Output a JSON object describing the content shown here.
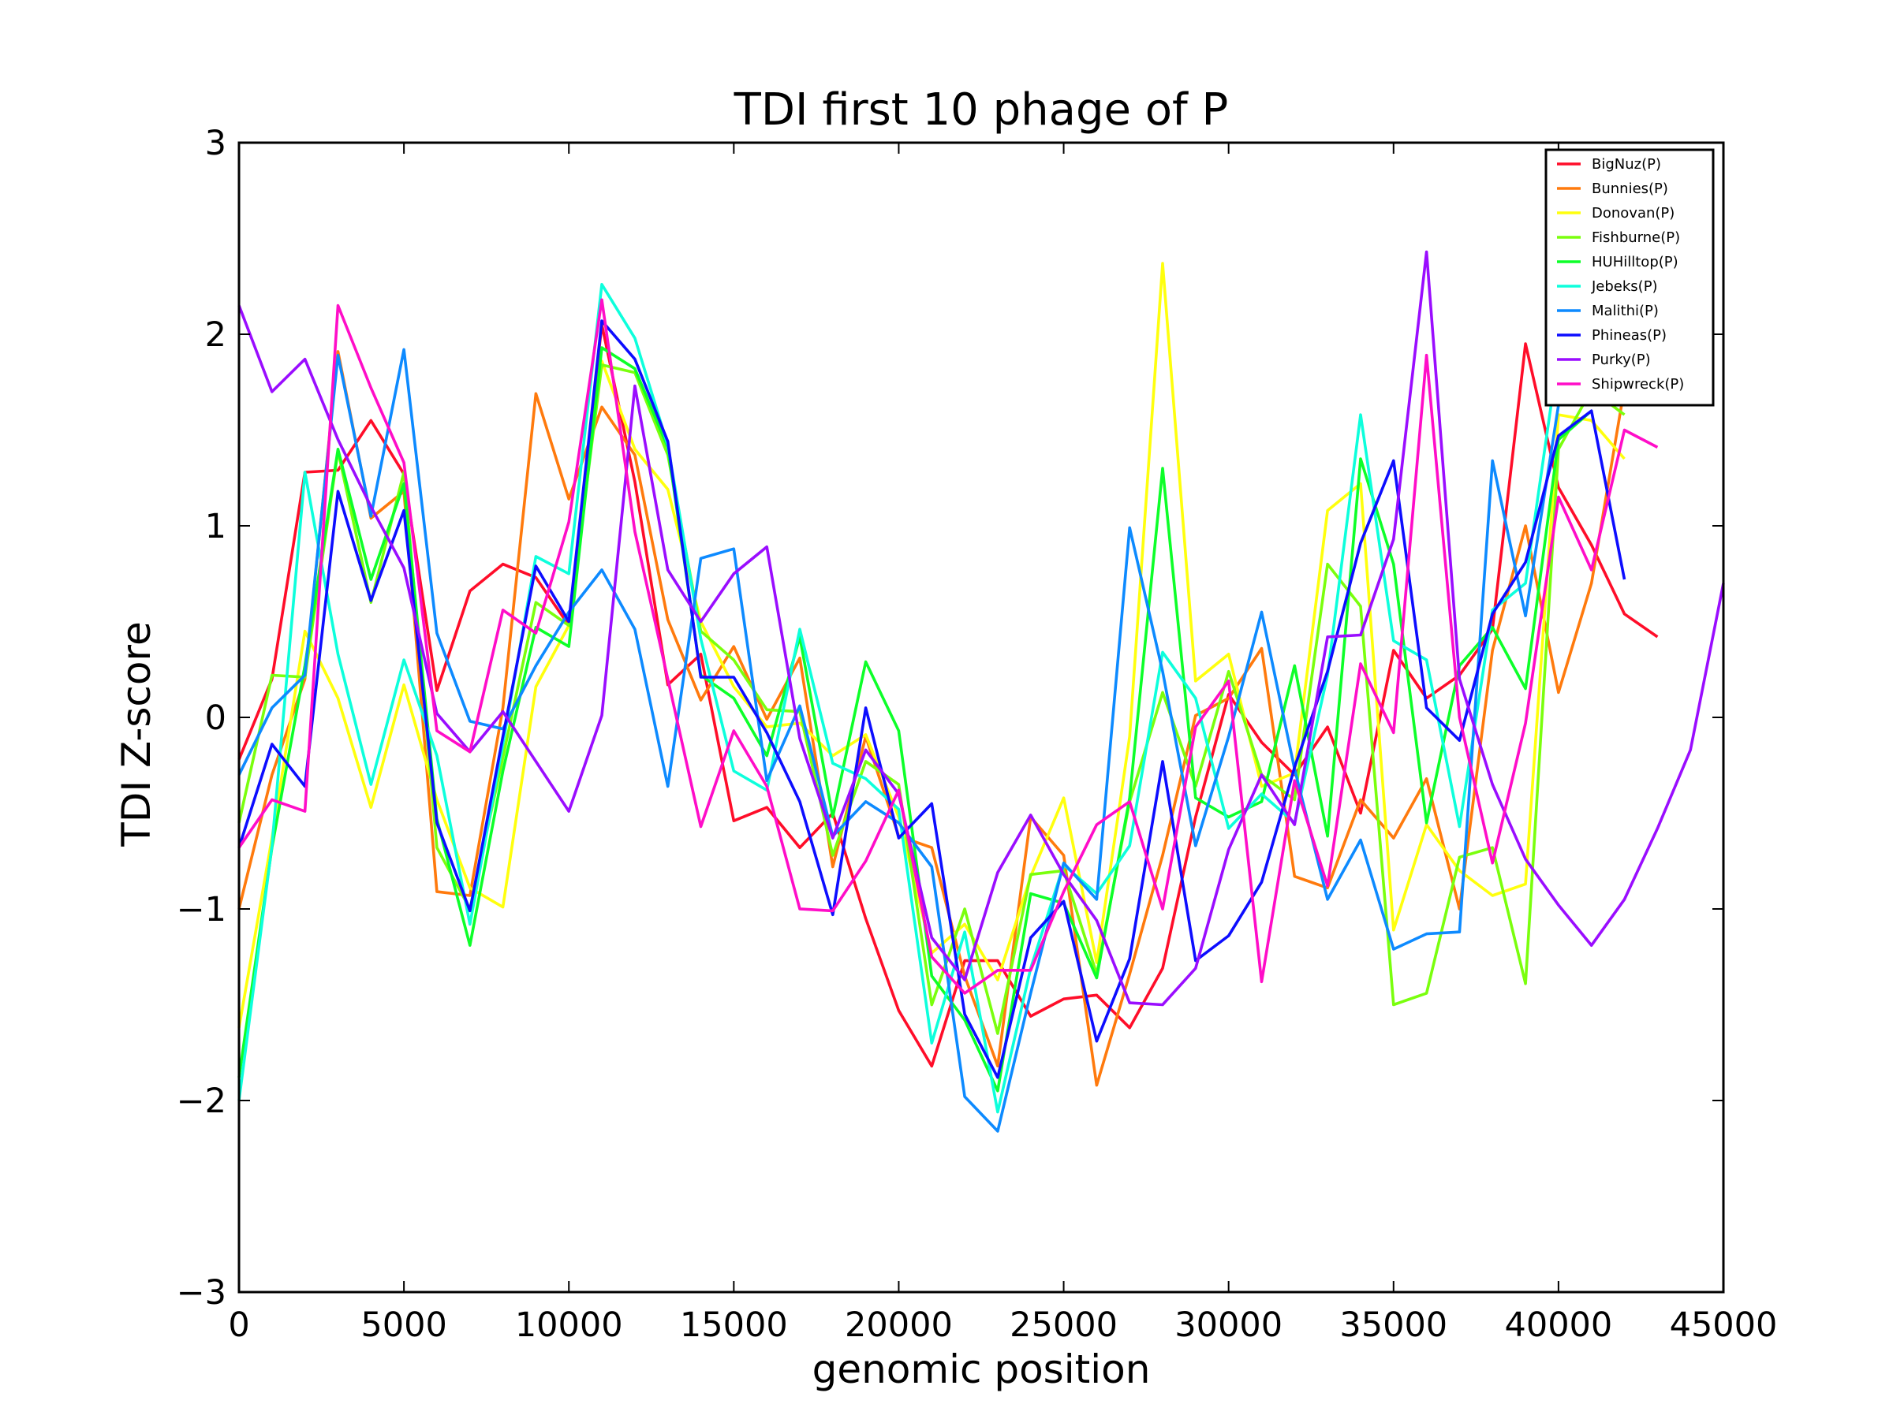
{
  "chart_data": {
    "type": "line",
    "title": "TDI first 10 phage of P",
    "xlabel": "genomic position",
    "ylabel": "TDI Z-score",
    "xlim": [
      0,
      45000
    ],
    "ylim": [
      -3,
      3
    ],
    "xticks": [
      0,
      5000,
      10000,
      15000,
      20000,
      25000,
      30000,
      35000,
      40000,
      45000
    ],
    "xtick_labels": [
      "0",
      "5000",
      "10000",
      "15000",
      "20000",
      "25000",
      "30000",
      "35000",
      "40000",
      "45000"
    ],
    "yticks": [
      -3,
      -2,
      -1,
      0,
      1,
      2,
      3
    ],
    "ytick_labels": [
      "−3",
      "−2",
      "−1",
      "0",
      "1",
      "2",
      "3"
    ],
    "grid": false,
    "legend_position": "top-right",
    "x": [
      0,
      1000,
      2000,
      3000,
      4000,
      5000,
      6000,
      7000,
      8000,
      9000,
      10000,
      11000,
      12000,
      13000,
      14000,
      15000,
      16000,
      17000,
      18000,
      19000,
      20000,
      21000,
      22000,
      23000,
      24000,
      25000,
      26000,
      27000,
      28000,
      29000,
      30000,
      31000,
      32000,
      33000,
      34000,
      35000,
      36000,
      37000,
      38000,
      39000,
      40000,
      41000,
      42000,
      43000,
      44000,
      45000
    ],
    "series": [
      {
        "name": "BigNuz(P)",
        "color": "#ff0d29",
        "values": [
          -0.22,
          0.2,
          1.28,
          1.29,
          1.55,
          1.27,
          0.14,
          0.66,
          0.8,
          0.73,
          0.48,
          2.05,
          1.23,
          0.17,
          0.33,
          -0.54,
          -0.47,
          -0.68,
          -0.5,
          -1.05,
          -1.53,
          -1.82,
          -1.27,
          -1.27,
          -1.56,
          -1.47,
          -1.45,
          -1.62,
          -1.31,
          -0.52,
          0.12,
          -0.13,
          -0.3,
          -0.05,
          -0.5,
          0.35,
          0.1,
          0.22,
          0.46,
          1.95,
          1.2,
          0.9,
          0.54,
          0.42,
          null,
          null
        ]
      },
      {
        "name": "Bunnies(P)",
        "color": "#ff7a0d",
        "values": [
          -1.0,
          -0.3,
          0.2,
          1.91,
          1.04,
          1.18,
          -0.91,
          -0.93,
          0.05,
          1.69,
          1.14,
          1.62,
          1.37,
          0.51,
          0.09,
          0.37,
          -0.01,
          0.31,
          -0.78,
          -0.1,
          -0.62,
          -0.68,
          -1.35,
          -1.82,
          -0.52,
          -0.72,
          -1.92,
          -1.34,
          -0.72,
          0.01,
          0.1,
          0.36,
          -0.83,
          -0.89,
          -0.43,
          -0.63,
          -0.32,
          -1.0,
          0.35,
          1.0,
          0.13,
          0.7,
          1.72,
          null,
          null,
          null
        ]
      },
      {
        "name": "Donovan(P)",
        "color": "#ffff0d",
        "values": [
          -1.62,
          -0.63,
          0.45,
          0.1,
          -0.47,
          0.17,
          -0.43,
          -0.89,
          -0.99,
          0.16,
          0.48,
          1.86,
          1.4,
          1.19,
          0.5,
          0.16,
          -0.05,
          -0.03,
          -0.2,
          -0.09,
          -0.52,
          -1.23,
          -1.08,
          -1.37,
          -0.83,
          -0.42,
          -1.28,
          -0.1,
          2.37,
          0.19,
          0.33,
          -0.36,
          -0.29,
          1.08,
          1.22,
          -1.11,
          -0.56,
          -0.8,
          -0.93,
          -0.87,
          1.58,
          1.55,
          1.35,
          null,
          null,
          null
        ]
      },
      {
        "name": "Fishburne(P)",
        "color": "#7aff0d",
        "values": [
          -0.55,
          0.22,
          0.21,
          1.39,
          0.6,
          1.28,
          -0.68,
          -1.0,
          -0.21,
          0.6,
          0.48,
          1.84,
          1.8,
          1.37,
          0.45,
          0.3,
          0.04,
          0.03,
          -0.72,
          -0.23,
          -0.35,
          -1.5,
          -1.0,
          -1.65,
          -0.82,
          -0.8,
          -1.34,
          -0.44,
          0.13,
          -0.36,
          0.24,
          -0.3,
          -0.43,
          0.8,
          0.58,
          -1.5,
          -1.44,
          -0.73,
          -0.68,
          -1.39,
          1.4,
          1.71,
          1.58,
          null,
          null,
          null
        ]
      },
      {
        "name": "HUHilltop(P)",
        "color": "#0dff29",
        "values": [
          -1.88,
          -0.68,
          0.27,
          1.4,
          0.72,
          1.22,
          -0.53,
          -1.19,
          -0.28,
          0.47,
          0.37,
          1.93,
          1.82,
          1.41,
          0.22,
          0.1,
          -0.2,
          0.42,
          -0.52,
          0.29,
          -0.07,
          -1.35,
          -1.58,
          -1.95,
          -0.92,
          -0.97,
          -1.36,
          -0.42,
          1.3,
          -0.42,
          -0.52,
          -0.44,
          0.27,
          -0.62,
          1.35,
          0.8,
          -0.55,
          0.27,
          0.47,
          0.15,
          1.45,
          1.6,
          null,
          null,
          null,
          null
        ]
      },
      {
        "name": "Jebeks(P)",
        "color": "#0dffdc",
        "values": [
          -2.0,
          -0.67,
          1.28,
          0.33,
          -0.35,
          0.3,
          -0.2,
          -1.08,
          -0.14,
          0.84,
          0.75,
          2.26,
          1.98,
          1.42,
          0.41,
          -0.28,
          -0.38,
          0.46,
          -0.24,
          -0.32,
          -0.48,
          -1.7,
          -1.12,
          -2.06,
          -1.31,
          -0.77,
          -0.92,
          -0.67,
          0.34,
          0.1,
          -0.58,
          -0.4,
          -0.55,
          0.22,
          1.58,
          0.4,
          0.3,
          -0.57,
          0.56,
          0.7,
          1.9,
          1.7,
          null,
          null,
          null,
          null
        ]
      },
      {
        "name": "Malithi(P)",
        "color": "#0d8aff",
        "values": [
          -0.3,
          0.05,
          0.22,
          1.89,
          1.05,
          1.92,
          0.44,
          -0.02,
          -0.06,
          0.27,
          0.55,
          0.77,
          0.46,
          -0.36,
          0.83,
          0.88,
          -0.33,
          0.06,
          -0.62,
          -0.44,
          -0.55,
          -0.78,
          -1.98,
          -2.16,
          -1.44,
          -0.76,
          -0.95,
          0.99,
          0.24,
          -0.67,
          -0.1,
          0.55,
          -0.27,
          -0.95,
          -0.64,
          -1.21,
          -1.13,
          -1.12,
          1.34,
          0.53,
          1.63,
          1.7,
          null,
          null,
          null,
          null
        ]
      },
      {
        "name": "Phineas(P)",
        "color": "#0d0dff",
        "values": [
          -0.68,
          -0.14,
          -0.36,
          1.18,
          0.61,
          1.08,
          -0.55,
          -1.01,
          -0.1,
          0.79,
          0.5,
          2.07,
          1.87,
          1.44,
          0.21,
          0.21,
          -0.08,
          -0.44,
          -1.03,
          0.05,
          -0.63,
          -0.45,
          -1.55,
          -1.88,
          -1.15,
          -0.96,
          -1.69,
          -1.26,
          -0.23,
          -1.27,
          -1.14,
          -0.86,
          -0.26,
          0.24,
          0.91,
          1.34,
          0.05,
          -0.12,
          0.54,
          0.81,
          1.47,
          1.6,
          0.72,
          null,
          null,
          null
        ]
      },
      {
        "name": "Purky(P)",
        "color": "#9a0dff",
        "values": [
          2.15,
          1.7,
          1.87,
          1.45,
          1.1,
          0.78,
          0.02,
          -0.18,
          0.03,
          -0.23,
          -0.49,
          0.01,
          1.73,
          0.77,
          0.5,
          0.75,
          0.89,
          -0.11,
          -0.63,
          -0.17,
          -0.4,
          -1.15,
          -1.37,
          -0.81,
          -0.51,
          -0.82,
          -1.06,
          -1.49,
          -1.5,
          -1.31,
          -0.69,
          -0.3,
          -0.56,
          0.42,
          0.43,
          0.93,
          2.43,
          0.2,
          -0.35,
          -0.74,
          -0.98,
          -1.19,
          -0.95,
          -0.58,
          -0.17,
          0.7
        ]
      },
      {
        "name": "Shipwreck(P)",
        "color": "#ff0dc8",
        "values": [
          -0.68,
          -0.43,
          -0.49,
          2.15,
          1.72,
          1.33,
          -0.07,
          -0.18,
          0.56,
          0.44,
          1.02,
          2.18,
          0.97,
          0.2,
          -0.57,
          -0.07,
          -0.36,
          -1.0,
          -1.01,
          -0.75,
          -0.38,
          -1.25,
          -1.44,
          -1.32,
          -1.32,
          -0.91,
          -0.56,
          -0.44,
          -1.0,
          -0.05,
          0.19,
          -1.38,
          -0.33,
          -0.88,
          0.28,
          -0.08,
          1.89,
          0.0,
          -0.76,
          -0.03,
          1.15,
          0.77,
          1.5,
          1.41,
          null,
          null
        ]
      }
    ]
  }
}
